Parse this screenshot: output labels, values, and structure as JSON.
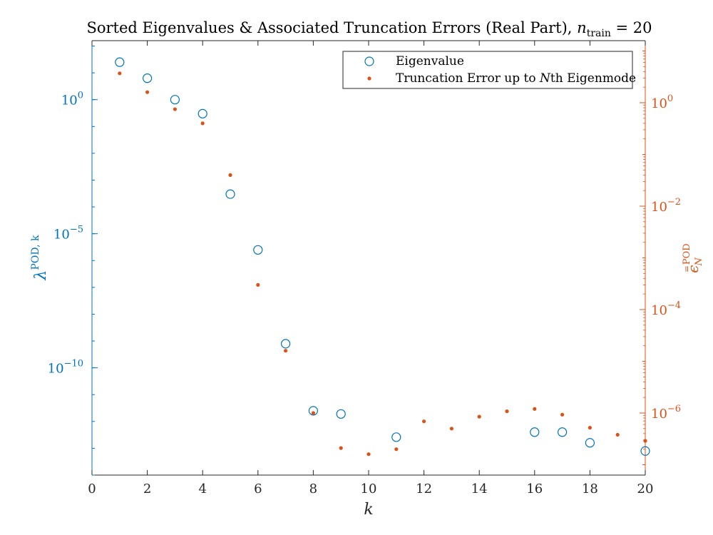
{
  "chart_data": {
    "type": "scatter",
    "title": "Sorted Eigenvalues & Associated Truncation Errors (Real Part), ",
    "title_math": {
      "base": "n",
      "subscript": "train",
      "rhs": " = 20"
    },
    "xlabel": "k",
    "ylabel_left": {
      "base": "λ",
      "superscript": "POD, k"
    },
    "ylabel_right": {
      "base": "ϵ",
      "superscript": "POD",
      "subscript": "N",
      "accent": "="
    },
    "x_ticks": [
      "0",
      "2",
      "4",
      "6",
      "8",
      "10",
      "12",
      "14",
      "16",
      "18",
      "20"
    ],
    "left_ticks": [
      {
        "base": "10",
        "exp": "0"
      },
      {
        "base": "10",
        "exp": "−5"
      },
      {
        "base": "10",
        "exp": "−10"
      }
    ],
    "right_ticks": [
      {
        "base": "10",
        "exp": "0"
      },
      {
        "base": "10",
        "exp": "−2"
      },
      {
        "base": "10",
        "exp": "−4"
      },
      {
        "base": "10",
        "exp": "−6"
      }
    ],
    "xlim": [
      0,
      20
    ],
    "ylim_left_log10": [
      -14.0,
      2.2
    ],
    "ylim_right_log10": [
      -7.2,
      1.2
    ],
    "grid": false,
    "legend_position": "top-right",
    "series": [
      {
        "name": "Eigenvalue",
        "marker": "open-circle",
        "color": "#0072bd",
        "axis": "left",
        "x": [
          1,
          2,
          3,
          4,
          5,
          6,
          7,
          8,
          9,
          11,
          16,
          17,
          18,
          20
        ],
        "y": [
          25,
          6.3,
          1.0,
          0.3,
          0.0003,
          2.5e-06,
          7.9e-10,
          2.5e-12,
          1.9e-12,
          2.6e-13,
          4e-13,
          4e-13,
          1.6e-13,
          7.9e-14
        ]
      },
      {
        "name": "Truncation Error up to Nth Eigenmode",
        "legend_italic_part": "N",
        "marker": "dot",
        "color": "#d95319",
        "axis": "right",
        "x": [
          1,
          2,
          3,
          4,
          5,
          6,
          7,
          8,
          9,
          10,
          11,
          12,
          13,
          14,
          15,
          16,
          17,
          18,
          19,
          20
        ],
        "y": [
          3.7,
          1.6,
          0.75,
          0.4,
          0.04,
          0.0003,
          1.6e-05,
          1e-06,
          2.1e-07,
          1.6e-07,
          2e-07,
          6.9e-07,
          5e-07,
          8.5e-07,
          1.08e-06,
          1.2e-06,
          9.3e-07,
          5.2e-07,
          3.8e-07,
          2.9e-07
        ]
      }
    ]
  }
}
